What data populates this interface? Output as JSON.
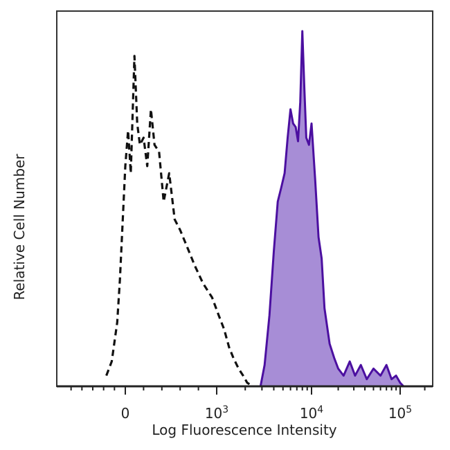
{
  "chart_data": {
    "type": "area",
    "xlabel": "Log Fluorescence Intensity",
    "ylabel": "Relative Cell Number",
    "x_scale": "biexponential (logicle)",
    "x_ticks": [
      {
        "value": 0,
        "base": "0",
        "sup": ""
      },
      {
        "value": 1000,
        "base": "10",
        "sup": "3"
      },
      {
        "value": 10000,
        "base": "10",
        "sup": "4"
      },
      {
        "value": 100000,
        "base": "10",
        "sup": "5"
      }
    ],
    "xlim": [
      -1200,
      250000
    ],
    "ylim": [
      0,
      100
    ],
    "grid": false,
    "legend": "none",
    "series": [
      {
        "style": "dashed-outline",
        "color": "#111111",
        "x": [
          -350,
          -250,
          -150,
          -100,
          -50,
          0,
          30,
          60,
          100,
          130,
          160,
          200,
          240,
          280,
          320,
          370,
          420,
          480,
          540,
          600,
          680,
          760,
          850,
          950,
          1050,
          1200,
          1350,
          1500,
          1700,
          1900,
          2100,
          2400
        ],
        "y": [
          3,
          7,
          18,
          30,
          46,
          62,
          72,
          60,
          93,
          74,
          68,
          70,
          62,
          78,
          68,
          66,
          52,
          60,
          47,
          44,
          39,
          34,
          29,
          25,
          20,
          16,
          11,
          8,
          5,
          3,
          1,
          0
        ]
      },
      {
        "style": "filled",
        "color": "#4b0fa0",
        "fill": "#a78dd6",
        "x": [
          2900,
          3200,
          3600,
          4000,
          4400,
          4800,
          5200,
          5600,
          6000,
          6400,
          6800,
          7200,
          7600,
          8000,
          8400,
          8800,
          9400,
          10000,
          11000,
          12000,
          13000,
          14000,
          16000,
          18000,
          20000,
          23000,
          27000,
          31000,
          36000,
          42000,
          50000,
          60000,
          70000,
          80000,
          90000,
          100000,
          110000
        ],
        "y": [
          0,
          6,
          20,
          38,
          52,
          56,
          60,
          70,
          78,
          74,
          73,
          69,
          80,
          100,
          84,
          70,
          68,
          74,
          58,
          42,
          36,
          22,
          12,
          8,
          5,
          3,
          7,
          3,
          6,
          2,
          5,
          3,
          6,
          2,
          3,
          1,
          0
        ]
      }
    ]
  }
}
